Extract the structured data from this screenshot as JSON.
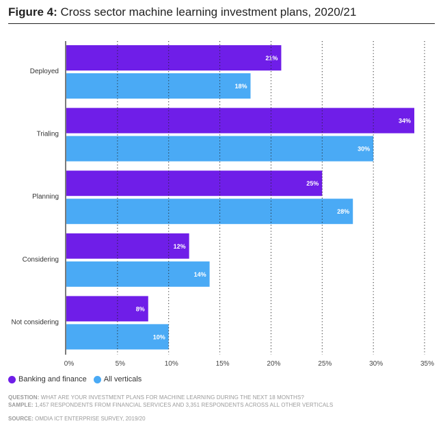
{
  "title": {
    "prefix": "Figure 4:",
    "text": "Cross sector machine learning investment plans, 2020/21"
  },
  "chart_data": {
    "type": "bar",
    "orientation": "horizontal",
    "categories": [
      "Deployed",
      "Trialing",
      "Planning",
      "Considering",
      "Not considering"
    ],
    "series": [
      {
        "name": "Banking and finance",
        "color": "#6f1ee8",
        "values": [
          21,
          34,
          25,
          12,
          8
        ]
      },
      {
        "name": "All verticals",
        "color": "#4aaaf5",
        "values": [
          18,
          30,
          28,
          14,
          10
        ]
      }
    ],
    "xlim": [
      0,
      35
    ],
    "xticks": [
      0,
      5,
      10,
      15,
      20,
      25,
      30,
      35
    ],
    "xtick_labels": [
      "0%",
      "5%",
      "10%",
      "15%",
      "20%",
      "25%",
      "30%",
      "35%"
    ],
    "value_suffix": "%",
    "grid": "vertical dotted",
    "legend": "bottom-left"
  },
  "legend": [
    {
      "label": "Banking and finance",
      "color": "#6f1ee8"
    },
    {
      "label": "All verticals",
      "color": "#4aaaf5"
    }
  ],
  "notes": {
    "question_label": "QUESTION:",
    "question": "WHAT ARE YOUR INVESTMENT PLANS FOR MACHINE LEARNING DURING THE NEXT 18 MONTHS?",
    "sample_label": "SAMPLE:",
    "sample": "1,457 RESPONDENTS FROM FINANCIAL SERVICES AND 3,351 RESPONDENTS ACROSS ALL OTHER VERTICALS",
    "source_label": "SOURCE:",
    "source": "OMDIA ICT ENTERPRISE SURVEY, 2019/20"
  }
}
